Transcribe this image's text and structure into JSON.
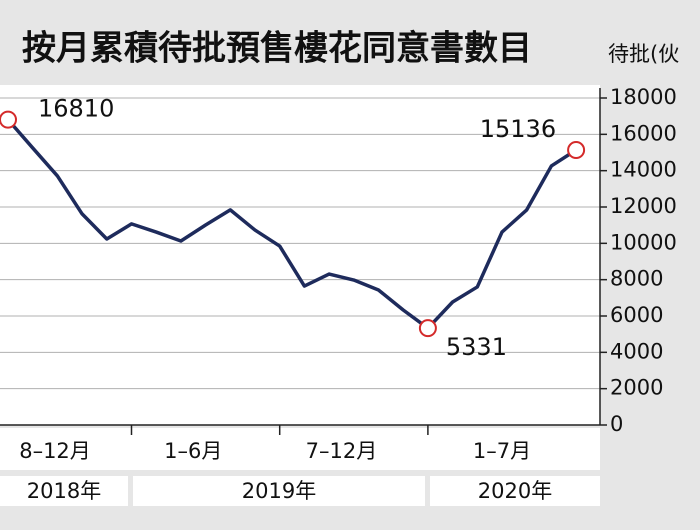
{
  "chart_data": {
    "type": "line",
    "title": "按月累積待批預售樓花同意書數目",
    "y_label": "待批(伙",
    "categories": [
      null,
      null,
      null,
      null,
      null,
      null,
      null,
      null,
      null,
      null,
      null,
      null,
      null,
      null,
      null,
      null,
      null,
      null,
      null,
      null,
      null,
      null,
      null,
      null
    ],
    "values": [
      16810,
      15250,
      13710,
      11620,
      10240,
      11070,
      10620,
      10130,
      11010,
      11840,
      10730,
      9850,
      7650,
      8310,
      7980,
      7430,
      6330,
      5331,
      6770,
      7600,
      10620,
      11840,
      14260,
      15136
    ],
    "color": "#1e2b5c",
    "marker_color": "#d42a2a",
    "period_labels": [
      "8–12月",
      "1–6月",
      "7–12月",
      "1–7月"
    ],
    "year_labels": [
      "2018年",
      "2019年",
      "2020年"
    ],
    "ylim": [
      0,
      18000
    ],
    "yticks": [
      0,
      2000,
      4000,
      6000,
      8000,
      10000,
      12000,
      14000,
      16000,
      18000
    ],
    "grid": true
  }
}
